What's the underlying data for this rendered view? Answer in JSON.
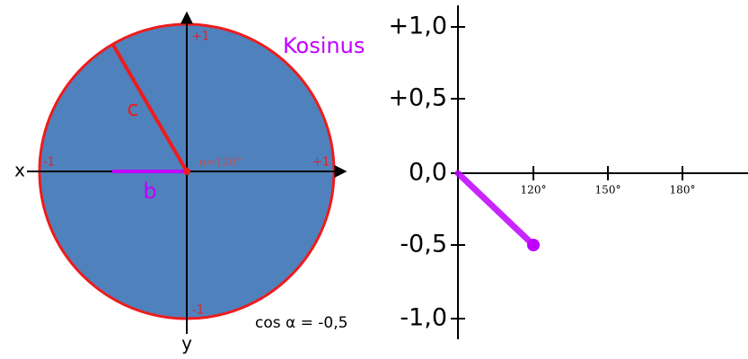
{
  "circle": {
    "title": "Kosinus",
    "axis_x": "x",
    "axis_y": "y",
    "labels": {
      "top": "+1",
      "bottom": "-1",
      "left": "-1",
      "right": "+1"
    },
    "angle": "α=120°",
    "hypotenuse": "c",
    "adjacent": "b",
    "formula": "cos α = -0,5"
  },
  "graph": {
    "y_ticks": [
      "+1,0",
      "+0,5",
      "0,0",
      "-0,5",
      "-1,0"
    ],
    "x_ticks": [
      "120°",
      "150°",
      "180°"
    ]
  }
}
